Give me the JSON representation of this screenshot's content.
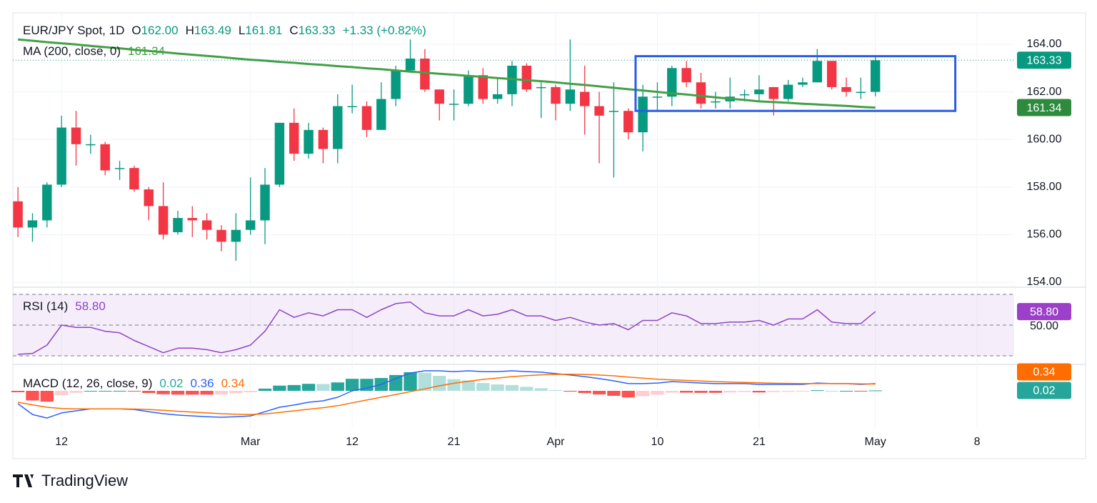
{
  "chart_data": {
    "type": "candlestick",
    "title": "EUR/JPY Spot, 1D",
    "ohlc": [
      {
        "key": "O",
        "value": "162.00"
      },
      {
        "key": "H",
        "value": "163.49"
      },
      {
        "key": "L",
        "value": "161.81"
      },
      {
        "key": "C",
        "value": "163.33"
      }
    ],
    "change": "+1.33 (+0.82%)",
    "up_color": "#089981",
    "down_color": "#f23645",
    "open": [
      157.4,
      156.3,
      156.6,
      158.1,
      160.5,
      159.8,
      159.8,
      158.8,
      158.8,
      157.9,
      157.2,
      156.1,
      156.7,
      156.6,
      156.2,
      155.7,
      156.2,
      156.6,
      158.1,
      160.7,
      159.4,
      160.4,
      159.6,
      161.4,
      161.4,
      160.4,
      161.7,
      162.9,
      163.4,
      162.1,
      161.5,
      161.5,
      162.7,
      161.7,
      161.9,
      163.1,
      162.2,
      162.2,
      161.5,
      162.0,
      161.4,
      161.2,
      161.2,
      160.3,
      161.8,
      161.8,
      163.0,
      162.4,
      161.6,
      161.6,
      161.9,
      161.9,
      162.2,
      161.7,
      162.3,
      162.4,
      163.3,
      162.2,
      162.0,
      162.0
    ],
    "high": [
      158.0,
      156.9,
      158.2,
      161.0,
      161.2,
      160.2,
      159.9,
      159.1,
      158.9,
      158.0,
      158.2,
      157.0,
      157.2,
      156.9,
      156.4,
      156.9,
      158.4,
      158.8,
      160.7,
      161.3,
      160.7,
      160.5,
      161.9,
      162.3,
      161.6,
      162.4,
      163.1,
      164.2,
      163.8,
      162.1,
      162.1,
      162.9,
      163.0,
      162.6,
      163.3,
      163.2,
      162.4,
      162.3,
      164.2,
      163.1,
      162.0,
      162.4,
      161.3,
      162.3,
      162.4,
      163.1,
      163.3,
      162.8,
      162.0,
      162.6,
      162.1,
      162.7,
      162.2,
      162.5,
      162.6,
      163.8,
      163.3,
      162.6,
      162.6,
      163.49
    ],
    "low": [
      155.9,
      155.7,
      156.3,
      158.0,
      158.9,
      159.4,
      158.5,
      158.3,
      157.8,
      156.6,
      155.8,
      156.0,
      155.9,
      155.8,
      155.3,
      154.9,
      156.0,
      155.6,
      158.0,
      159.1,
      159.2,
      159.0,
      159.0,
      161.1,
      160.1,
      160.4,
      161.4,
      162.8,
      162.0,
      160.8,
      160.8,
      161.4,
      161.5,
      161.5,
      161.4,
      162.0,
      160.9,
      160.8,
      161.2,
      160.2,
      159.0,
      158.4,
      160.0,
      159.5,
      161.2,
      161.4,
      162.2,
      161.3,
      161.3,
      161.3,
      161.6,
      161.6,
      161.0,
      161.6,
      162.2,
      162.4,
      162.1,
      161.8,
      161.7,
      161.81
    ],
    "close": [
      156.3,
      156.6,
      158.1,
      160.5,
      159.8,
      159.8,
      158.7,
      158.8,
      157.9,
      157.2,
      156.0,
      156.7,
      156.6,
      156.2,
      155.7,
      156.2,
      156.6,
      158.1,
      160.7,
      159.4,
      160.4,
      159.6,
      161.4,
      161.4,
      160.4,
      161.7,
      162.9,
      163.4,
      162.1,
      161.5,
      161.5,
      162.7,
      161.7,
      161.9,
      163.1,
      162.1,
      162.2,
      161.5,
      162.1,
      161.4,
      161.0,
      161.2,
      160.3,
      161.8,
      161.8,
      163.0,
      162.4,
      161.5,
      161.6,
      161.8,
      161.9,
      162.1,
      161.7,
      162.3,
      162.4,
      163.3,
      162.2,
      162.0,
      162.0,
      163.33
    ],
    "last_price_label": "163.33",
    "xlim": [
      -0.35,
      68.55
    ],
    "xticks": [
      {
        "value": 3,
        "label": "12"
      },
      {
        "value": 16,
        "label": "Mar"
      },
      {
        "value": 23,
        "label": "12"
      },
      {
        "value": 30,
        "label": "21"
      },
      {
        "value": 37,
        "label": "Apr"
      },
      {
        "value": 44,
        "label": "10"
      },
      {
        "value": 51,
        "label": "21"
      },
      {
        "value": 59,
        "label": "May"
      },
      {
        "value": 66,
        "label": "8"
      }
    ],
    "ylim": [
      153.79,
      165.32
    ],
    "yticks": [
      {
        "value": 154,
        "label": "154.00"
      },
      {
        "value": 156,
        "label": "156.00"
      },
      {
        "value": 158,
        "label": "158.00"
      },
      {
        "value": 160,
        "label": "160.00"
      },
      {
        "value": 162,
        "label": "162.00"
      },
      {
        "value": 164,
        "label": "164.00"
      }
    ],
    "grid": true,
    "ma": {
      "name": "MA (200, close, 0)",
      "value_label": "161.34",
      "color": "#43a047",
      "values": [
        164.2,
        164.15,
        164.09,
        164.04,
        163.99,
        163.93,
        163.88,
        163.83,
        163.77,
        163.72,
        163.67,
        163.61,
        163.56,
        163.51,
        163.46,
        163.4,
        163.35,
        163.31,
        163.26,
        163.22,
        163.17,
        163.13,
        163.08,
        163.04,
        162.99,
        162.95,
        162.9,
        162.85,
        162.81,
        162.76,
        162.72,
        162.67,
        162.63,
        162.58,
        162.54,
        162.49,
        162.45,
        162.4,
        162.34,
        162.29,
        162.23,
        162.17,
        162.11,
        162.06,
        162.0,
        161.94,
        161.89,
        161.83,
        161.77,
        161.71,
        161.66,
        161.6,
        161.57,
        161.54,
        161.5,
        161.47,
        161.44,
        161.41,
        161.37,
        161.34
      ]
    },
    "annotation_box": {
      "x0": 42.5,
      "x1": 64.5,
      "y0": 161.2,
      "y1": 163.5,
      "color": "#2b5ce6"
    },
    "rsi": {
      "name": "RSI (14)",
      "value_label": "58.80",
      "color": "#8e44c4",
      "values": [
        31,
        31.5,
        37,
        50,
        48.5,
        48.5,
        46,
        45,
        40,
        36,
        32,
        35,
        35,
        34,
        32,
        34,
        37,
        46,
        60,
        55,
        58,
        56,
        60,
        60,
        55,
        60,
        64,
        65,
        58,
        56,
        56,
        60,
        56,
        57,
        60,
        56,
        56,
        53,
        55,
        52,
        50,
        51,
        47,
        53,
        53,
        58,
        56,
        51,
        51,
        52,
        52,
        53,
        50,
        54,
        54,
        60,
        52,
        51,
        51,
        58.8
      ],
      "ylim": [
        24.42,
        74.65
      ],
      "yticks": [
        {
          "value": 50,
          "label": "50.00"
        }
      ],
      "levels": [
        70,
        50,
        30
      ]
    },
    "macd": {
      "name": "MACD (12, 26, close, 9)",
      "hist_label": "0.02",
      "macd_label": "0.36",
      "signal_label": "0.34",
      "macd_color": "#2962ff",
      "signal_color": "#ff6d00",
      "hist_colors": [
        "#26a69a",
        "#b2dfdb",
        "#ff5252",
        "#ffcdd2"
      ],
      "macd": [
        -0.64,
        -1.18,
        -1.36,
        -1.1,
        -1.0,
        -0.9,
        -0.9,
        -0.9,
        -0.93,
        -1.04,
        -1.14,
        -1.21,
        -1.25,
        -1.29,
        -1.32,
        -1.29,
        -1.25,
        -1.04,
        -0.82,
        -0.71,
        -0.57,
        -0.5,
        -0.32,
        0,
        0.14,
        0.32,
        0.61,
        0.89,
        1.0,
        1.0,
        0.96,
        1.0,
        0.96,
        0.96,
        1.0,
        0.96,
        0.93,
        0.86,
        0.79,
        0.71,
        0.61,
        0.5,
        0.36,
        0.36,
        0.39,
        0.46,
        0.43,
        0.39,
        0.36,
        0.36,
        0.36,
        0.32,
        0.32,
        0.32,
        0.32,
        0.39,
        0.36,
        0.36,
        0.32,
        0.36
      ],
      "signal": [
        -0.57,
        -0.7,
        -0.82,
        -0.88,
        -0.9,
        -0.9,
        -0.9,
        -0.9,
        -0.91,
        -0.93,
        -0.97,
        -1.02,
        -1.06,
        -1.1,
        -1.14,
        -1.17,
        -1.18,
        -1.15,
        -1.08,
        -1.0,
        -0.92,
        -0.84,
        -0.74,
        -0.6,
        -0.46,
        -0.32,
        -0.18,
        -0.04,
        0.1,
        0.25,
        0.38,
        0.48,
        0.57,
        0.64,
        0.71,
        0.76,
        0.8,
        0.82,
        0.83,
        0.82,
        0.79,
        0.75,
        0.69,
        0.63,
        0.58,
        0.55,
        0.52,
        0.49,
        0.46,
        0.44,
        0.42,
        0.4,
        0.38,
        0.37,
        0.36,
        0.36,
        0.36,
        0.36,
        0.35,
        0.34
      ],
      "histogram": [
        -0.07,
        -0.48,
        -0.54,
        -0.22,
        -0.1,
        0,
        0,
        0,
        -0.02,
        -0.11,
        -0.17,
        -0.19,
        -0.19,
        -0.19,
        -0.18,
        -0.12,
        -0.07,
        0.11,
        0.26,
        0.29,
        0.35,
        0.34,
        0.42,
        0.6,
        0.6,
        0.64,
        0.79,
        0.93,
        0.9,
        0.75,
        0.58,
        0.52,
        0.39,
        0.32,
        0.29,
        0.2,
        0.13,
        0.04,
        -0.04,
        -0.11,
        -0.18,
        -0.25,
        -0.33,
        -0.27,
        -0.19,
        -0.09,
        -0.09,
        -0.1,
        -0.1,
        -0.08,
        -0.06,
        -0.08,
        -0.06,
        -0.05,
        -0.04,
        0.03,
        0,
        0,
        -0.03,
        0.02
      ],
      "ylim": [
        -1.89,
        1.32
      ]
    }
  },
  "brand": "TradingView"
}
